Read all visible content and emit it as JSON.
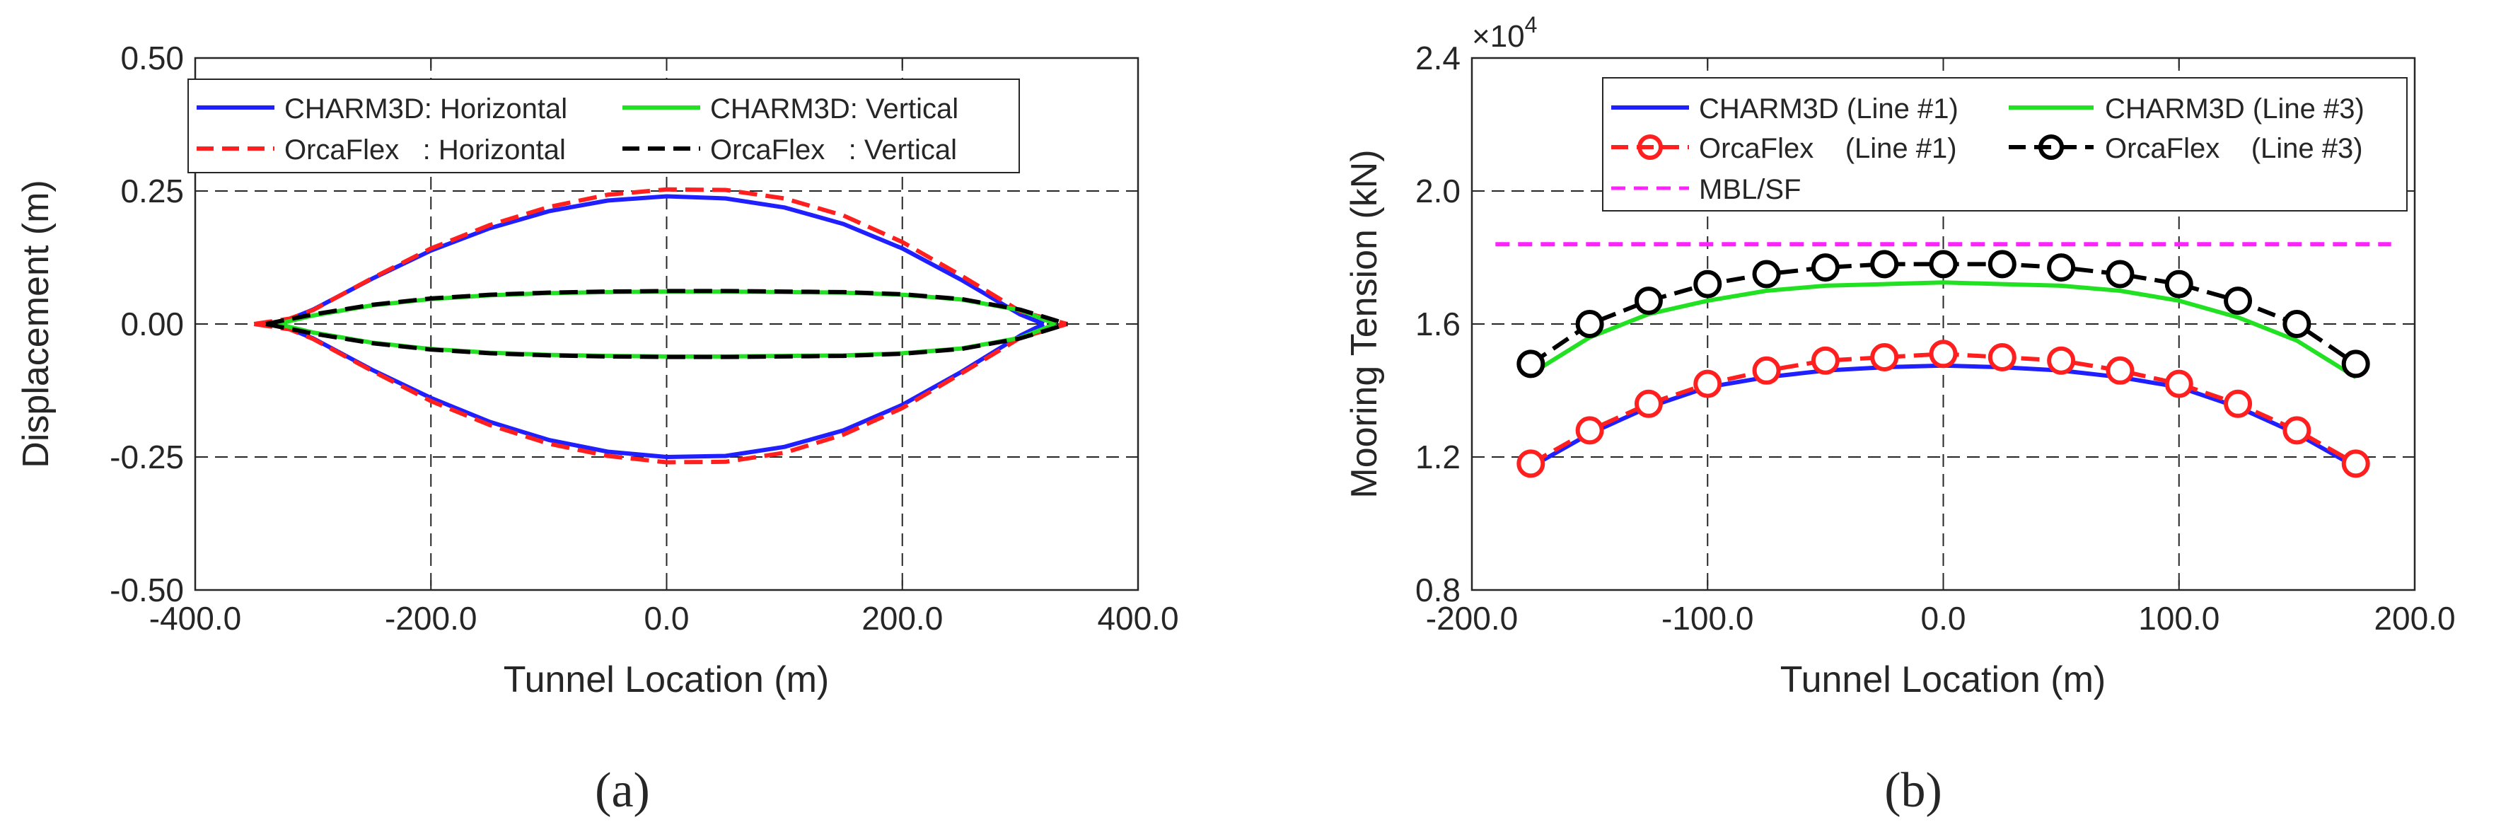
{
  "colors": {
    "blue": "#1f1fff",
    "green": "#22e022",
    "red": "#ff1f1f",
    "black": "#000000",
    "magenta": "#ff22ff",
    "axis": "#262626"
  },
  "chart_data": [
    {
      "type": "line",
      "caption": "(a)",
      "title": "",
      "xlabel": "Tunnel Location (m)",
      "ylabel": "Displacement (m)",
      "xlim": [
        -400,
        400
      ],
      "ylim": [
        -0.5,
        0.5
      ],
      "xticks": [
        -400,
        -200,
        0,
        200,
        400
      ],
      "xtick_labels": [
        "-400.0",
        "-200.0",
        "0.0",
        "200.0",
        "400.0"
      ],
      "yticks": [
        -0.5,
        -0.25,
        0,
        0.25,
        0.5
      ],
      "ytick_labels": [
        "-0.50",
        "-0.25",
        "0.00",
        "0.25",
        "0.50"
      ],
      "grid": true,
      "legend_position": "top-inside, two columns",
      "series": [
        {
          "name": "CHARM3D: Horizontal",
          "group": "horizontal",
          "color": "blue",
          "dash": "solid",
          "x": [
            -330,
            -300,
            -250,
            -200,
            -150,
            -100,
            -50,
            0,
            50,
            100,
            150,
            200,
            250,
            300,
            320
          ],
          "upper": [
            0,
            0.027,
            0.085,
            0.138,
            0.18,
            0.212,
            0.232,
            0.24,
            0.236,
            0.219,
            0.188,
            0.142,
            0.083,
            0.018,
            0
          ],
          "lower": [
            0,
            -0.027,
            -0.086,
            -0.139,
            -0.184,
            -0.218,
            -0.24,
            -0.25,
            -0.248,
            -0.231,
            -0.2,
            -0.152,
            -0.09,
            -0.022,
            0
          ]
        },
        {
          "name": "OrcaFlex   : Horizontal",
          "group": "horizontal",
          "color": "red",
          "dash": "dashed",
          "x": [
            -350,
            -320,
            -300,
            -250,
            -200,
            -150,
            -100,
            -50,
            0,
            50,
            100,
            150,
            200,
            250,
            300,
            340
          ],
          "upper": [
            0,
            0.01,
            0.026,
            0.086,
            0.142,
            0.186,
            0.22,
            0.243,
            0.253,
            0.252,
            0.236,
            0.204,
            0.154,
            0.091,
            0.024,
            0
          ],
          "lower": [
            0,
            -0.01,
            -0.028,
            -0.088,
            -0.145,
            -0.19,
            -0.225,
            -0.248,
            -0.26,
            -0.259,
            -0.242,
            -0.208,
            -0.158,
            -0.093,
            -0.026,
            0
          ]
        },
        {
          "name": "CHARM3D: Vertical",
          "group": "vertical",
          "color": "green",
          "dash": "solid",
          "x": [
            -330,
            -300,
            -250,
            -200,
            -150,
            -100,
            -50,
            0,
            50,
            100,
            150,
            200,
            250,
            300,
            330
          ],
          "upper": [
            0,
            0.016,
            0.035,
            0.047,
            0.054,
            0.058,
            0.06,
            0.061,
            0.061,
            0.06,
            0.059,
            0.055,
            0.046,
            0.026,
            0
          ],
          "lower": [
            0,
            -0.016,
            -0.035,
            -0.047,
            -0.054,
            -0.058,
            -0.06,
            -0.061,
            -0.061,
            -0.06,
            -0.059,
            -0.055,
            -0.046,
            -0.026,
            0
          ]
        },
        {
          "name": "OrcaFlex   : Vertical",
          "group": "vertical",
          "color": "black",
          "dash": "dashed",
          "x": [
            -340,
            -300,
            -250,
            -200,
            -150,
            -100,
            -50,
            0,
            50,
            100,
            150,
            200,
            250,
            300,
            340
          ],
          "upper": [
            0,
            0.018,
            0.036,
            0.048,
            0.055,
            0.059,
            0.061,
            0.062,
            0.062,
            0.061,
            0.06,
            0.056,
            0.047,
            0.027,
            0
          ],
          "lower": [
            0,
            -0.018,
            -0.036,
            -0.048,
            -0.055,
            -0.059,
            -0.061,
            -0.062,
            -0.062,
            -0.061,
            -0.06,
            -0.056,
            -0.047,
            -0.027,
            0
          ]
        }
      ]
    },
    {
      "type": "line",
      "caption": "(b)",
      "title": "",
      "xlabel": "Tunnel Location (m)",
      "ylabel": "Mooring Tension (kN)",
      "y_multiplier": "×10",
      "y_multiplier_exp": "4",
      "xlim": [
        -200,
        200
      ],
      "ylim": [
        0.8,
        2.4
      ],
      "xticks": [
        -200,
        -100,
        0,
        100,
        200
      ],
      "xtick_labels": [
        "-200.0",
        "-100.0",
        "0.0",
        "100.0",
        "200.0"
      ],
      "yticks": [
        0.8,
        1.2,
        1.6,
        2.0,
        2.4
      ],
      "ytick_labels": [
        "0.8",
        "1.2",
        "1.6",
        "2.0",
        "2.4"
      ],
      "grid": true,
      "legend_position": "top-inside, two columns",
      "series": [
        {
          "name": "CHARM3D (Line #1)",
          "color": "blue",
          "dash": "solid",
          "marker": "none",
          "x": [
            -175,
            -150,
            -125,
            -100,
            -75,
            -50,
            -25,
            0,
            25,
            50,
            75,
            100,
            125,
            150,
            175
          ],
          "y": [
            1.17,
            1.27,
            1.35,
            1.41,
            1.44,
            1.46,
            1.47,
            1.475,
            1.47,
            1.46,
            1.44,
            1.41,
            1.35,
            1.27,
            1.17
          ]
        },
        {
          "name": "CHARM3D (Line #3)",
          "color": "green",
          "dash": "solid",
          "marker": "none",
          "x": [
            -175,
            -150,
            -125,
            -100,
            -75,
            -50,
            -25,
            0,
            25,
            50,
            75,
            100,
            125,
            150,
            175
          ],
          "y": [
            1.45,
            1.56,
            1.63,
            1.67,
            1.7,
            1.715,
            1.72,
            1.725,
            1.72,
            1.715,
            1.7,
            1.67,
            1.62,
            1.55,
            1.44
          ]
        },
        {
          "name": "OrcaFlex    (Line #1)",
          "color": "red",
          "dash": "dashed",
          "marker": "circle",
          "x": [
            -175,
            -150,
            -125,
            -100,
            -75,
            -50,
            -25,
            0,
            25,
            50,
            75,
            100,
            125,
            150,
            175
          ],
          "y": [
            1.18,
            1.28,
            1.36,
            1.42,
            1.46,
            1.49,
            1.5,
            1.51,
            1.5,
            1.49,
            1.46,
            1.42,
            1.36,
            1.28,
            1.18
          ]
        },
        {
          "name": "OrcaFlex    (Line #3)",
          "color": "black",
          "dash": "dashed",
          "marker": "circle",
          "x": [
            -175,
            -150,
            -125,
            -100,
            -75,
            -50,
            -25,
            0,
            25,
            50,
            75,
            100,
            125,
            150,
            175
          ],
          "y": [
            1.48,
            1.6,
            1.67,
            1.72,
            1.75,
            1.77,
            1.78,
            1.78,
            1.78,
            1.77,
            1.75,
            1.72,
            1.67,
            1.6,
            1.48
          ]
        },
        {
          "name": "MBL/SF",
          "color": "magenta",
          "dash": "dashed",
          "marker": "none",
          "x": [
            -190,
            190
          ],
          "y": [
            1.84,
            1.84
          ]
        }
      ]
    }
  ]
}
